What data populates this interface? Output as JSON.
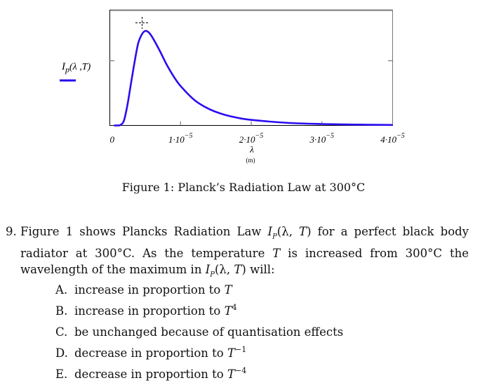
{
  "chart_data": {
    "type": "line",
    "title": "",
    "xlabel": "λ",
    "xunit": "(m)",
    "ylabel_main": "I",
    "ylabel_sub": "p",
    "ylabel_args": "(λ ,T)",
    "xlim": [
      0,
      4e-05
    ],
    "ylim": [
      0,
      1.22
    ],
    "xticks": [
      {
        "value": 0,
        "mant": "0",
        "exp": ""
      },
      {
        "value": 1e-05,
        "mant": "1·10",
        "exp": "−5"
      },
      {
        "value": 2e-05,
        "mant": "2·10",
        "exp": "−5"
      },
      {
        "value": 3e-05,
        "mant": "3·10",
        "exp": "−5"
      },
      {
        "value": 4e-05,
        "mant": "4·10",
        "exp": "−5"
      }
    ],
    "series": [
      {
        "name": "Ip(λ,T)",
        "color": "#2b0df0",
        "x": [
          6e-07,
          1e-06,
          1.5e-06,
          2e-06,
          2.5e-06,
          3e-06,
          3.5e-06,
          4e-06,
          4.5e-06,
          5e-06,
          5.5e-06,
          6e-06,
          7e-06,
          8e-06,
          9e-06,
          1e-05,
          1.2e-05,
          1.4e-05,
          1.6e-05,
          1.8e-05,
          2e-05,
          2.5e-05,
          3e-05,
          3.5e-05,
          4e-05
        ],
        "y": [
          0,
          0,
          0.005,
          0.052,
          0.22,
          0.448,
          0.67,
          0.866,
          0.96,
          1.0,
          0.985,
          0.935,
          0.8,
          0.65,
          0.522,
          0.418,
          0.267,
          0.175,
          0.118,
          0.082,
          0.059,
          0.028,
          0.0149,
          0.0086,
          0.0053
        ]
      }
    ],
    "grid": false,
    "legend": "left"
  },
  "figure_caption": "Figure 1: Planck’s Radiation Law at 300°C",
  "question": {
    "number": "9.",
    "p1": "Figure 1 shows Plancks Radiation Law ",
    "ip": "I",
    "ip_sub": "P",
    "p2": "(λ, ",
    "T": "T",
    "p3": ") for a perfect black body radiator at 300°C. As the temperature ",
    "p4": " is increased from 300°C the wavelength of the maximum in ",
    "p5": ") will:"
  },
  "options": [
    {
      "letter": "A.",
      "text": "increase in proportion to ",
      "var": "T",
      "exp": ""
    },
    {
      "letter": "B.",
      "text": "increase in proportion to ",
      "var": "T",
      "exp": "4"
    },
    {
      "letter": "C.",
      "text": "be unchanged because of quantisation effects",
      "var": "",
      "exp": ""
    },
    {
      "letter": "D.",
      "text": "decrease in proportion to ",
      "var": "T",
      "exp": "−1"
    },
    {
      "letter": "E.",
      "text": "decrease in proportion to ",
      "var": "T",
      "exp": "−4"
    }
  ]
}
